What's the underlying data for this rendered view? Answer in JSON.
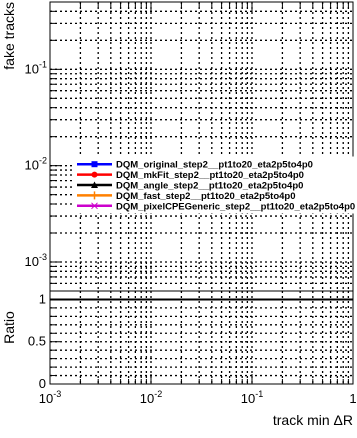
{
  "chart_data": [
    {
      "type": "line",
      "panel": "main",
      "ylabel": "fake tracks",
      "xscale": "log",
      "yscale": "log",
      "xlim": [
        0.001,
        1
      ],
      "ylim": [
        0.0005,
        0.5
      ],
      "grid": true,
      "y_ticks": [
        {
          "value": 0.1,
          "base": "10",
          "exp": "-1"
        },
        {
          "value": 0.01,
          "base": "10",
          "exp": "-2"
        },
        {
          "value": 0.001,
          "base": "10",
          "exp": "-3"
        }
      ],
      "legend_position": "right",
      "series": [
        {
          "name": "DQM_original_step2__pt1to20_eta2p5to4p0",
          "color": "#0000ff",
          "marker": "square",
          "values": []
        },
        {
          "name": "DQM_mkFit_step2__pt1to20_eta2p5to4p0",
          "color": "#ff0000",
          "marker": "circle",
          "values": []
        },
        {
          "name": "DQM_angle_step2__pt1to20_eta2p5to4p0",
          "color": "#000000",
          "marker": "triangle",
          "values": []
        },
        {
          "name": "DQM_fast_step2__pt1to20_eta2p5to4p0",
          "color": "#ff8000",
          "marker": "plus",
          "values": []
        },
        {
          "name": "DQM_pixelCPEGeneric_step2__pt1to20_eta2p5to4p0",
          "color": "#cc00cc",
          "marker": "star",
          "values": []
        }
      ]
    },
    {
      "type": "line",
      "panel": "ratio",
      "xlabel": "track min ΔR",
      "ylabel": "Ratio",
      "xscale": "log",
      "xlim": [
        0.001,
        1
      ],
      "ylim": [
        0,
        1.1
      ],
      "grid": true,
      "reference_line": 1,
      "x_ticks": [
        {
          "value": 0.001,
          "base": "10",
          "exp": "-3"
        },
        {
          "value": 0.01,
          "base": "10",
          "exp": "-2"
        },
        {
          "value": 0.1,
          "base": "10",
          "exp": "-1"
        },
        {
          "value": 1,
          "base": "1",
          "exp": ""
        }
      ],
      "y_ticks": [
        {
          "value": 0,
          "label": "0"
        },
        {
          "value": 0.5,
          "label": "0.5"
        },
        {
          "value": 1,
          "label": "1"
        }
      ],
      "series": []
    }
  ]
}
